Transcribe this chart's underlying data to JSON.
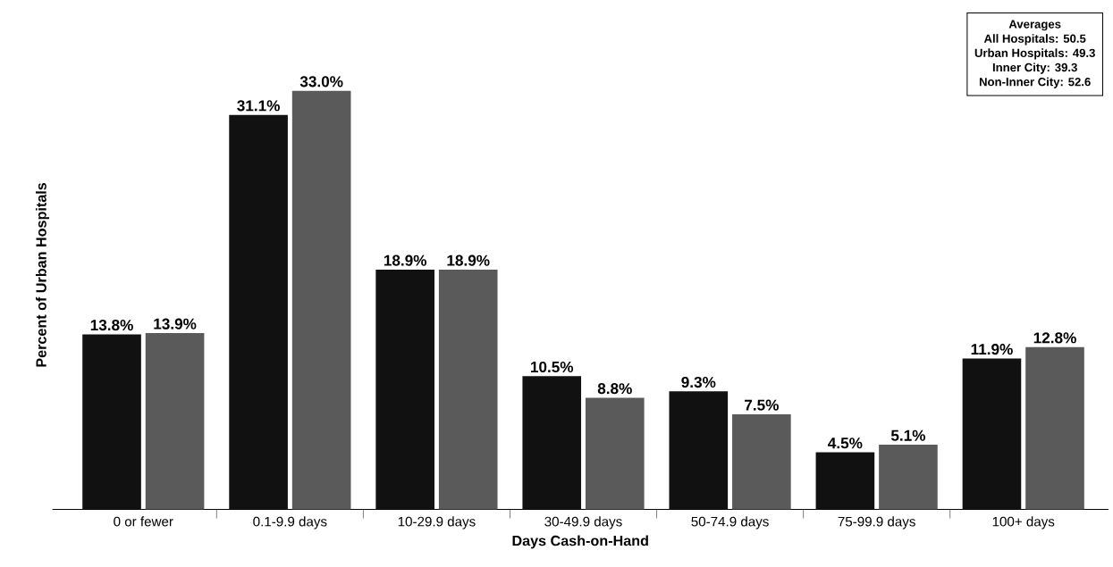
{
  "chart_data": {
    "type": "bar",
    "categories": [
      "0 or fewer",
      "0.1-9.9 days",
      "10-29.9 days",
      "30-49.9 days",
      "50-74.9 days",
      "75-99.9 days",
      "100+ days"
    ],
    "series": [
      {
        "color": "#111111",
        "values": [
          13.8,
          31.1,
          18.9,
          10.5,
          9.3,
          4.5,
          11.9
        ],
        "value_labels": [
          "13.8%",
          "31.1%",
          "18.9%",
          "10.5%",
          "9.3%",
          "4.5%",
          "11.9%"
        ]
      },
      {
        "color": "#5a5a5a",
        "values": [
          13.9,
          33.0,
          18.9,
          8.8,
          7.5,
          5.1,
          12.8
        ],
        "value_labels": [
          "13.9%",
          "33.0%",
          "18.9%",
          "8.8%",
          "7.5%",
          "5.1%",
          "12.8%"
        ]
      }
    ],
    "xlabel": "Days Cash-on-Hand",
    "ylabel": "Percent of Urban Hospitals",
    "annotations": [
      "Averages",
      "All Hospitals: 50.5",
      "Urban Hospitals: 49.3",
      "Inner City: 39.3",
      "Non-Inner City: 52.6"
    ],
    "grid": false
  }
}
